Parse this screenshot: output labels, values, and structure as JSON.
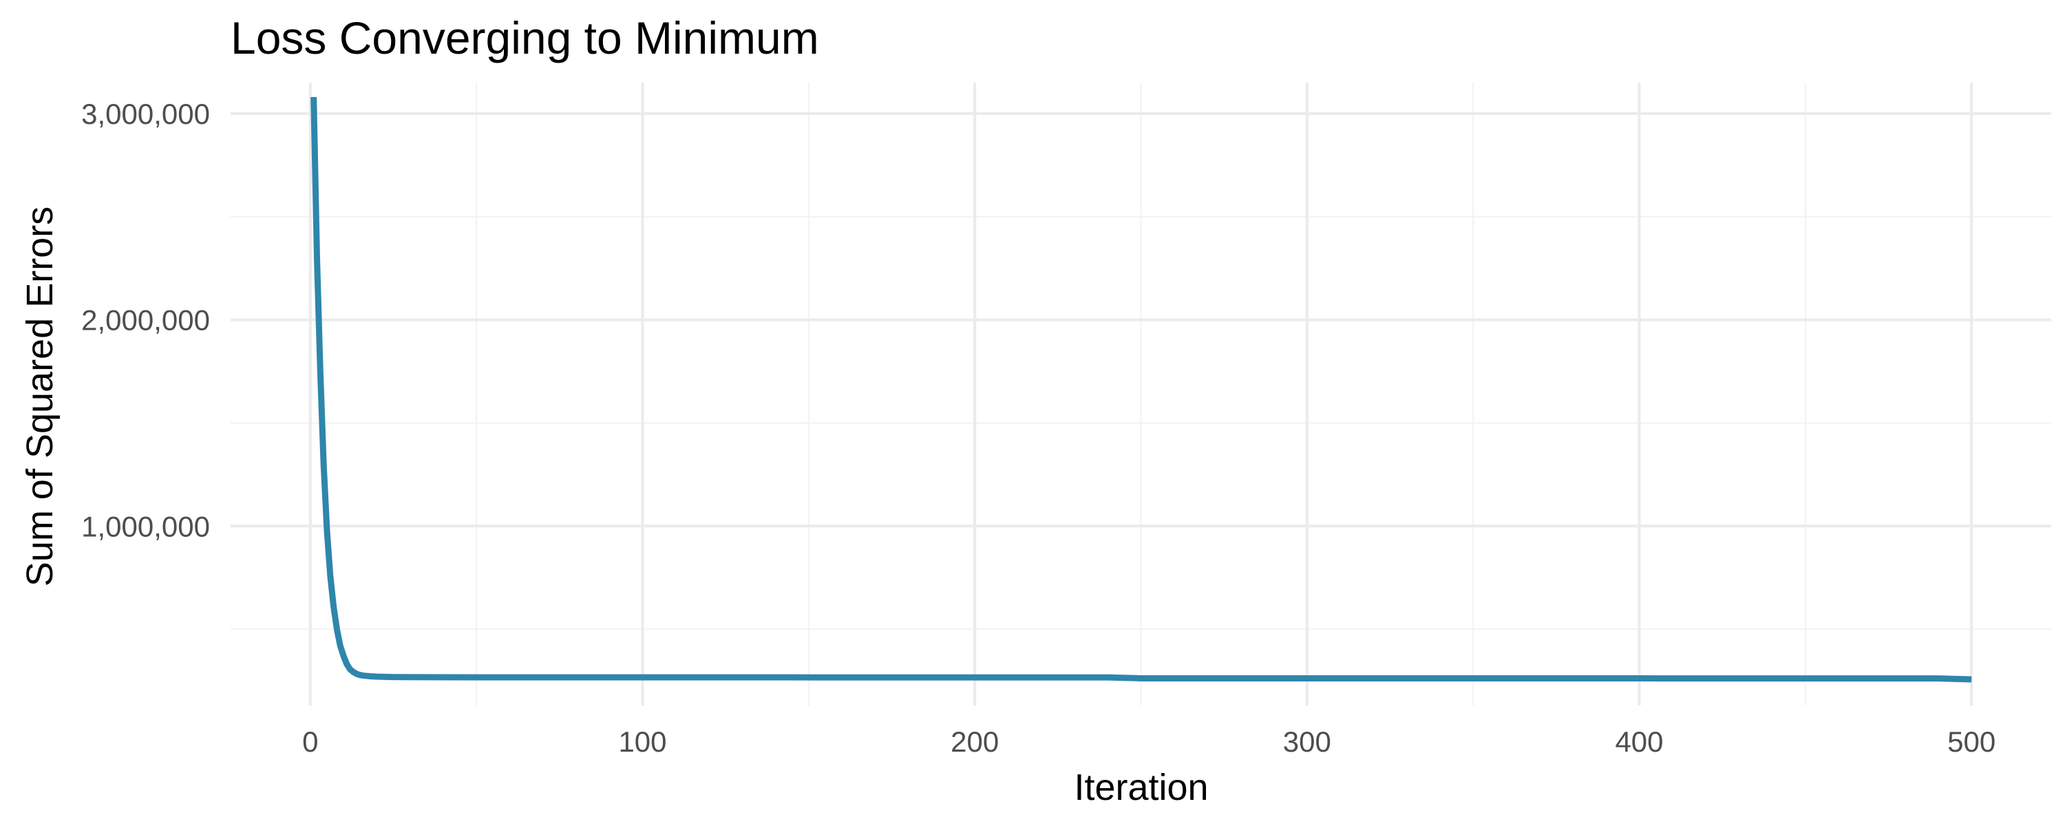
{
  "chart_data": {
    "type": "line",
    "title": "Loss Converging to Minimum",
    "xlabel": "Iteration",
    "ylabel": "Sum of Squared Errors",
    "xlim": [
      -24,
      524
    ],
    "ylim": [
      130000,
      3150000
    ],
    "x_ticks": [
      0,
      100,
      200,
      300,
      400,
      500
    ],
    "x_tick_labels": [
      "0",
      "100",
      "200",
      "300",
      "400",
      "500"
    ],
    "y_ticks": [
      1000000,
      2000000,
      3000000
    ],
    "y_tick_labels": [
      "1,000,000",
      "2,000,000",
      "3,000,000"
    ],
    "grid": true,
    "legend": "none",
    "line_color": "#2E86AB",
    "series": [
      {
        "x": [
          1,
          2,
          3,
          4,
          5,
          6,
          7,
          8,
          9,
          10,
          11,
          12,
          13,
          14,
          15,
          16,
          18,
          20,
          25,
          30,
          50,
          100,
          150,
          200,
          240,
          250,
          300,
          350,
          400,
          450,
          490,
          500
        ],
        "y": [
          3080000,
          2300000,
          1750000,
          1300000,
          980000,
          760000,
          610000,
          500000,
          420000,
          370000,
          330000,
          305000,
          292000,
          283000,
          278000,
          275000,
          272000,
          270000,
          268000,
          267500,
          267000,
          266800,
          266600,
          266500,
          266400,
          262000,
          261800,
          261700,
          261600,
          261500,
          261400,
          257000
        ]
      }
    ]
  }
}
